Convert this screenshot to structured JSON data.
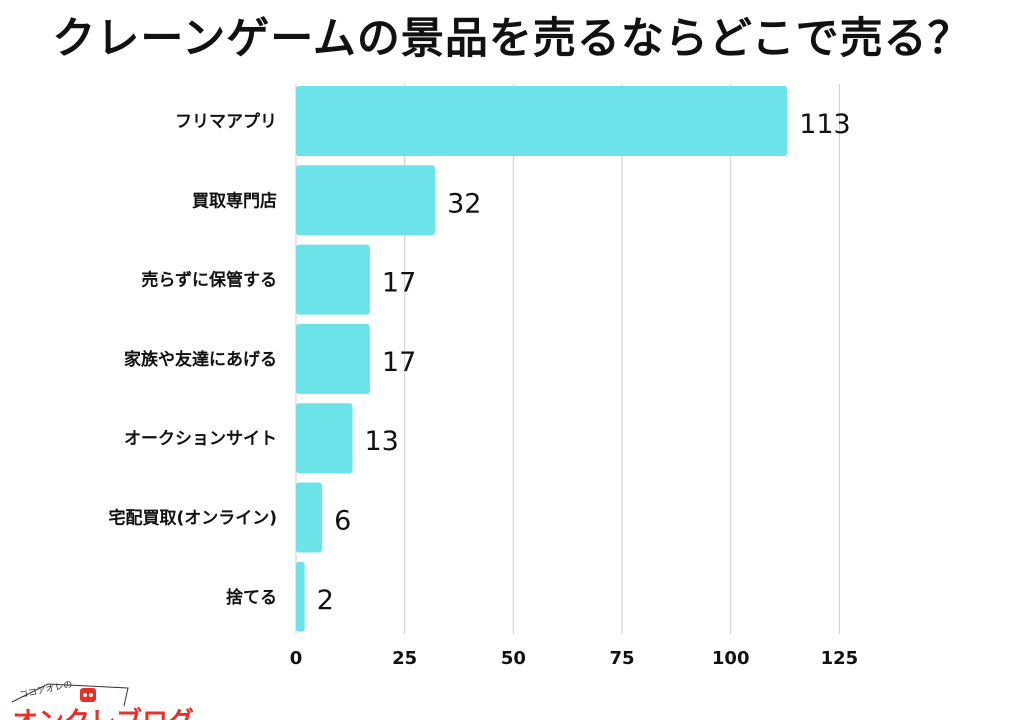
{
  "title": "クレーンゲームの景品を売るならどこで売る？",
  "chart_data": {
    "type": "bar",
    "orientation": "horizontal",
    "title": "クレーンゲームの景品を売るならどこで売る？",
    "categories": [
      "フリマアプリ",
      "買取専門店",
      "売らずに保管する",
      "家族や友達にあげる",
      "オークションサイト",
      "宅配買取(オンライン)",
      "捨てる"
    ],
    "values": [
      113,
      32,
      17,
      17,
      13,
      6,
      2
    ],
    "xlim": [
      0,
      125
    ],
    "xticks": [
      0,
      25,
      50,
      75,
      100,
      125
    ],
    "bar_color": "#6be3e8",
    "grid_color": "#cccccc",
    "grid": true
  },
  "logo": {
    "small_text": "ココアオレの",
    "big_text": "オンクレブログ",
    "color": "#e8302a"
  }
}
